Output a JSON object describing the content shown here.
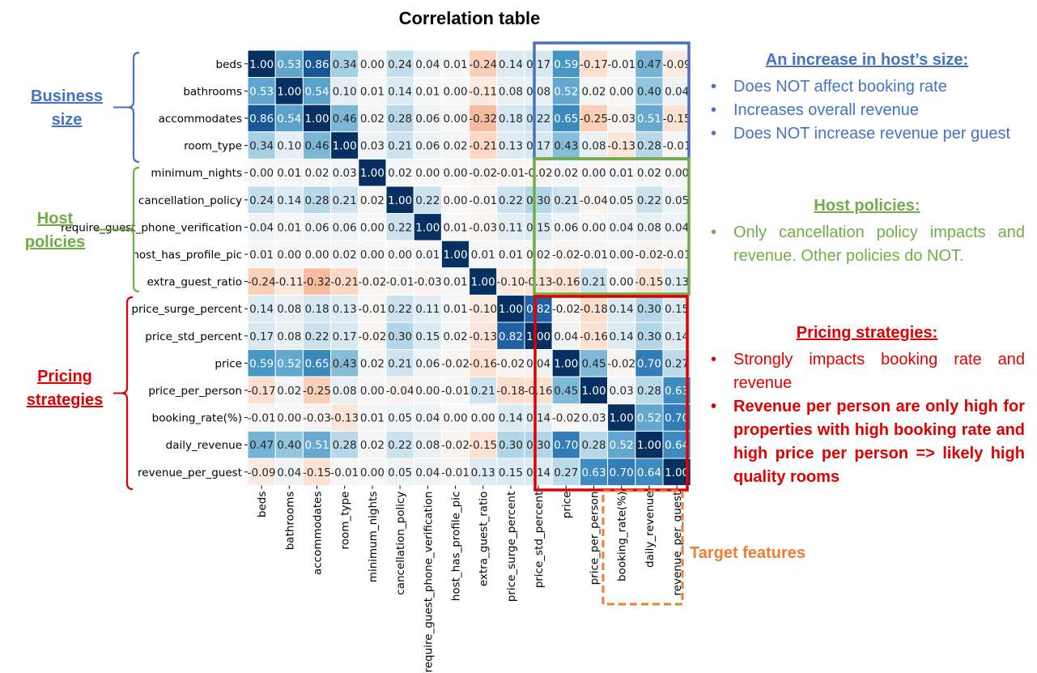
{
  "title": "Correlation table",
  "groups": {
    "business": "Business size",
    "host": "Host policies",
    "pricing": "Pricing strategies"
  },
  "colors": {
    "business": "#4472C4",
    "host": "#70AD47",
    "pricing": "#E00000",
    "target": "#ED7D31"
  },
  "panels": {
    "size": {
      "heading": "An increase in host’s size:",
      "bullets": [
        "Does NOT affect booking rate",
        "Increases overall revenue",
        "Does NOT increase revenue per guest"
      ]
    },
    "policies": {
      "heading": "Host policies:",
      "bullets": [
        "Only cancellation policy impacts and revenue. Other policies do NOT."
      ]
    },
    "pricing": {
      "heading": "Pricing strategies:",
      "bullets": [
        "Strongly impacts booking rate and revenue",
        "Revenue per person are only high for properties with high booking rate and high price per person => likely high quality rooms"
      ]
    }
  },
  "target_label": "Target features",
  "chart_data": {
    "type": "heatmap",
    "title": "Correlation table",
    "colormap": "RdBu",
    "vmin": -1,
    "vmax": 1,
    "labels": [
      "beds",
      "bathrooms",
      "accommodates",
      "room_type",
      "minimum_nights",
      "cancellation_policy",
      "require_guest_phone_verification",
      "host_has_profile_pic",
      "extra_guest_ratio",
      "price_surge_percent",
      "price_std_percent",
      "price",
      "price_per_person",
      "booking_rate(%)",
      "daily_revenue",
      "revenue_per_guest"
    ],
    "matrix": [
      [
        1.0,
        0.53,
        0.86,
        0.34,
        0.0,
        0.24,
        0.04,
        0.01,
        -0.24,
        0.14,
        0.17,
        0.59,
        -0.17,
        -0.01,
        0.47,
        -0.09
      ],
      [
        0.53,
        1.0,
        0.54,
        0.1,
        0.01,
        0.14,
        0.01,
        0.0,
        -0.11,
        0.08,
        0.08,
        0.52,
        0.02,
        -0.0,
        0.4,
        0.04
      ],
      [
        0.86,
        0.54,
        1.0,
        0.46,
        0.02,
        0.28,
        0.06,
        0.0,
        -0.32,
        0.18,
        0.22,
        0.65,
        -0.25,
        -0.03,
        0.51,
        -0.15
      ],
      [
        0.34,
        0.1,
        0.46,
        1.0,
        0.03,
        0.21,
        0.06,
        0.02,
        -0.21,
        0.13,
        0.17,
        0.43,
        0.08,
        -0.13,
        0.28,
        -0.01
      ],
      [
        0.0,
        0.01,
        0.02,
        0.03,
        1.0,
        0.02,
        0.0,
        0.0,
        -0.02,
        -0.01,
        -0.02,
        0.02,
        0.0,
        0.01,
        0.02,
        0.0
      ],
      [
        0.24,
        0.14,
        0.28,
        0.21,
        0.02,
        1.0,
        0.22,
        0.0,
        -0.01,
        0.22,
        0.3,
        0.21,
        -0.04,
        0.05,
        0.22,
        0.05
      ],
      [
        0.04,
        0.01,
        0.06,
        0.06,
        0.0,
        0.22,
        1.0,
        0.01,
        -0.03,
        0.11,
        0.15,
        0.06,
        -0.0,
        0.04,
        0.08,
        0.04
      ],
      [
        0.01,
        0.0,
        0.0,
        0.02,
        0.0,
        0.0,
        0.01,
        1.0,
        0.01,
        0.01,
        0.02,
        -0.02,
        -0.01,
        0.0,
        -0.02,
        -0.01
      ],
      [
        -0.24,
        -0.11,
        -0.32,
        -0.21,
        -0.02,
        -0.01,
        -0.03,
        0.01,
        1.0,
        -0.1,
        -0.13,
        -0.16,
        0.21,
        -0.0,
        -0.15,
        0.13
      ],
      [
        0.14,
        0.08,
        0.18,
        0.13,
        -0.01,
        0.22,
        0.11,
        0.01,
        -0.1,
        1.0,
        0.82,
        -0.02,
        -0.18,
        0.14,
        0.3,
        0.15
      ],
      [
        0.17,
        0.08,
        0.22,
        0.17,
        -0.02,
        0.3,
        0.15,
        0.02,
        -0.13,
        0.82,
        1.0,
        0.04,
        -0.16,
        0.14,
        0.3,
        0.14
      ],
      [
        0.59,
        0.52,
        0.65,
        0.43,
        0.02,
        0.21,
        0.06,
        -0.02,
        -0.16,
        -0.02,
        0.04,
        1.0,
        0.45,
        -0.02,
        0.7,
        0.27
      ],
      [
        -0.17,
        0.02,
        -0.25,
        0.08,
        0.0,
        -0.04,
        -0.0,
        -0.01,
        0.21,
        -0.18,
        -0.16,
        0.45,
        1.0,
        0.03,
        0.28,
        0.63
      ],
      [
        -0.01,
        -0.0,
        -0.03,
        -0.13,
        0.01,
        0.05,
        0.04,
        0.0,
        -0.0,
        0.14,
        0.14,
        -0.02,
        0.03,
        1.0,
        0.52,
        0.7
      ],
      [
        0.47,
        0.4,
        0.51,
        0.28,
        0.02,
        0.22,
        0.08,
        -0.02,
        -0.15,
        0.3,
        0.3,
        0.7,
        0.28,
        0.52,
        1.0,
        0.64
      ],
      [
        -0.09,
        0.04,
        -0.15,
        -0.01,
        0.0,
        0.05,
        0.04,
        -0.01,
        0.13,
        0.15,
        0.14,
        0.27,
        0.63,
        0.7,
        0.64,
        1.0
      ]
    ]
  }
}
